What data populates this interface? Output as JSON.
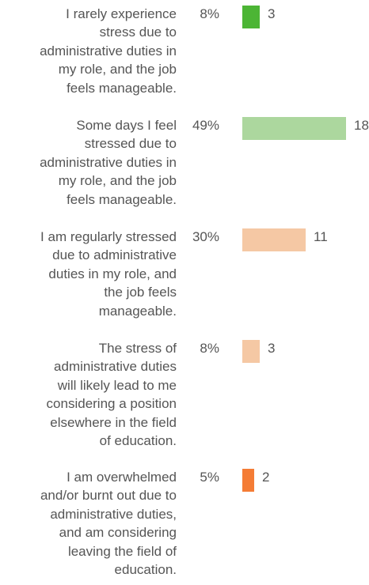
{
  "chart_data": {
    "type": "bar",
    "orientation": "horizontal",
    "categories": [
      "I rarely experience stress due to administrative duties in my role, and the job feels manageable.",
      "Some days I feel stressed due to administrative duties in my role, and the job feels manageable.",
      "I am regularly stressed due to administrative duties in my role, and the job feels manageable.",
      "The stress of administrative duties will likely lead to me considering a position elsewhere in the field of education.",
      "I am overwhelmed and/or burnt out due to administrative duties, and am considering leaving the field of education."
    ],
    "label_lines": [
      [
        "I rarely experience",
        "stress due to",
        "administrative duties in",
        "my role, and the job",
        "feels manageable."
      ],
      [
        "Some days I feel",
        "stressed due to",
        "administrative duties in",
        "my role, and the job",
        "feels manageable."
      ],
      [
        "I am regularly stressed",
        "due to administrative",
        "duties in my role, and",
        "the job feels",
        "manageable."
      ],
      [
        "The stress of",
        "administrative duties",
        "will likely lead to me",
        "considering a position",
        "elsewhere in the field",
        "of education."
      ],
      [
        "I am overwhelmed",
        "and/or burnt out due to",
        "administrative duties,",
        "and am considering",
        "leaving the field of",
        "education."
      ]
    ],
    "values": [
      3,
      18,
      11,
      3,
      2
    ],
    "percentages": [
      "8%",
      "49%",
      "30%",
      "8%",
      "5%"
    ],
    "colors": [
      "#4cb535",
      "#acd79e",
      "#f5c8a4",
      "#f5c8a4",
      "#f47c35"
    ],
    "xlim": [
      0,
      18
    ],
    "title": "",
    "xlabel": "",
    "ylabel": "",
    "grid": false,
    "legend": "none"
  }
}
